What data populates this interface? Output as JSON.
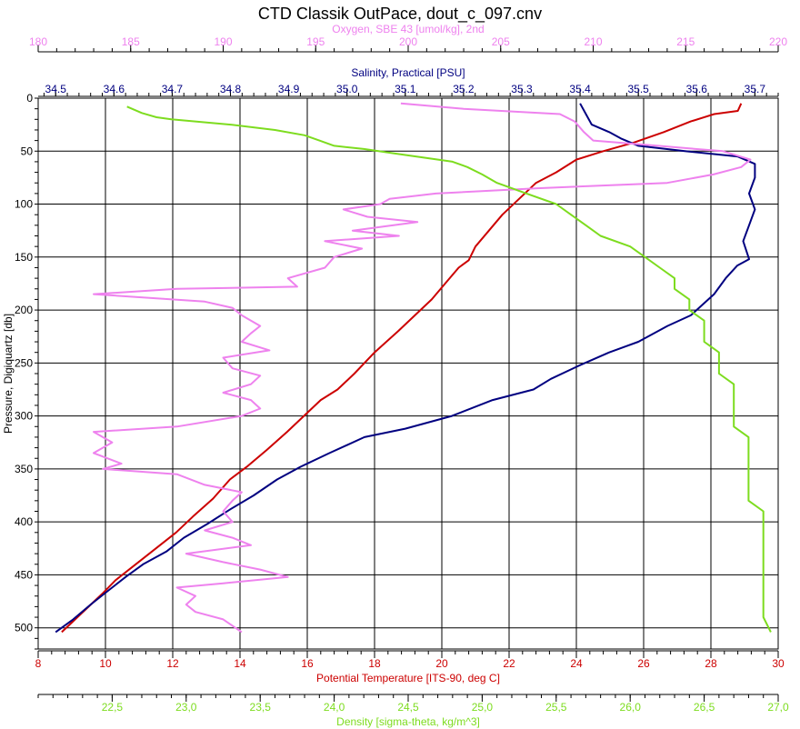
{
  "title": "CTD Classik OutPace, dout_c_097.cnv",
  "chart_data": {
    "type": "line",
    "title": "CTD Classik OutPace, dout_c_097.cnv",
    "y_axis": {
      "label": "Pressure, Digiquartz [db]",
      "range": [
        0,
        520
      ],
      "inverted": true,
      "ticks": [
        0,
        50,
        100,
        150,
        200,
        250,
        300,
        350,
        400,
        450,
        500
      ]
    },
    "x_axes": [
      {
        "id": "oxygen",
        "label": "Oxygen, SBE 43 [umol/kg], 2nd",
        "color": "#ee82ee",
        "position": "top-1",
        "range": [
          180,
          220
        ],
        "ticks": [
          180,
          185,
          190,
          195,
          200,
          205,
          210,
          215,
          220
        ],
        "tick_labels": [
          "180",
          "185",
          "190",
          "195",
          "200",
          "205",
          "210",
          "215",
          "220"
        ]
      },
      {
        "id": "salinity",
        "label": "Salinity, Practical [PSU]",
        "color": "#000080",
        "position": "top-2",
        "range": [
          34.47,
          35.74
        ],
        "ticks": [
          34.5,
          34.6,
          34.7,
          34.8,
          34.9,
          35.0,
          35.1,
          35.2,
          35.3,
          35.4,
          35.5,
          35.6,
          35.7
        ],
        "tick_labels": [
          "34.5",
          "34.6",
          "34.7",
          "34.8",
          "34.9",
          "35.0",
          "35.1",
          "35.2",
          "35.3",
          "35.4",
          "35.5",
          "35.6",
          "35.7"
        ]
      },
      {
        "id": "temperature",
        "label": "Potential Temperature [ITS-90, deg C]",
        "color": "#cc0000",
        "position": "bottom-1",
        "range": [
          8,
          30
        ],
        "ticks": [
          8,
          10,
          12,
          14,
          16,
          18,
          20,
          22,
          24,
          26,
          28,
          30
        ],
        "tick_labels": [
          "8",
          "10",
          "12",
          "14",
          "16",
          "18",
          "20",
          "22",
          "24",
          "26",
          "28",
          "30"
        ]
      },
      {
        "id": "density",
        "label": "Density [sigma-theta, kg/m^3]",
        "color": "#7ddc1f",
        "position": "bottom-2",
        "range": [
          22.0,
          27.0
        ],
        "ticks": [
          22.5,
          23.0,
          23.5,
          24.0,
          24.5,
          25.0,
          25.5,
          26.0,
          26.5,
          27.0
        ],
        "tick_labels": [
          "22,5",
          "23,0",
          "23,5",
          "24,0",
          "24,5",
          "25,0",
          "25,5",
          "26,0",
          "26,5",
          "27,0"
        ]
      }
    ],
    "grid": true,
    "series": [
      {
        "axis": "temperature",
        "color": "#cc0000",
        "points": [
          [
            28.9,
            5
          ],
          [
            28.8,
            12
          ],
          [
            28.1,
            15
          ],
          [
            27.4,
            22
          ],
          [
            26.6,
            32
          ],
          [
            25.7,
            42
          ],
          [
            24.8,
            50
          ],
          [
            24.0,
            58
          ],
          [
            23.4,
            70
          ],
          [
            22.8,
            80
          ],
          [
            22.3,
            95
          ],
          [
            21.8,
            110
          ],
          [
            21.4,
            125
          ],
          [
            21.0,
            140
          ],
          [
            20.8,
            153
          ],
          [
            20.5,
            160
          ],
          [
            20.1,
            175
          ],
          [
            19.7,
            190
          ],
          [
            19.2,
            205
          ],
          [
            18.7,
            220
          ],
          [
            18.0,
            240
          ],
          [
            17.4,
            260
          ],
          [
            16.9,
            275
          ],
          [
            16.4,
            285
          ],
          [
            15.9,
            300
          ],
          [
            15.4,
            315
          ],
          [
            14.8,
            332
          ],
          [
            14.2,
            348
          ],
          [
            13.7,
            360
          ],
          [
            13.2,
            378
          ],
          [
            12.6,
            395
          ],
          [
            12.1,
            410
          ],
          [
            11.5,
            425
          ],
          [
            10.9,
            440
          ],
          [
            10.3,
            455
          ],
          [
            9.9,
            468
          ],
          [
            9.5,
            480
          ],
          [
            9.1,
            492
          ],
          [
            8.7,
            504
          ]
        ]
      },
      {
        "axis": "salinity",
        "color": "#000080",
        "points": [
          [
            35.4,
            5
          ],
          [
            35.41,
            15
          ],
          [
            35.42,
            25
          ],
          [
            35.45,
            32
          ],
          [
            35.47,
            38
          ],
          [
            35.5,
            45
          ],
          [
            35.58,
            50
          ],
          [
            35.67,
            55
          ],
          [
            35.7,
            62
          ],
          [
            35.7,
            75
          ],
          [
            35.69,
            90
          ],
          [
            35.7,
            105
          ],
          [
            35.69,
            120
          ],
          [
            35.68,
            135
          ],
          [
            35.69,
            152
          ],
          [
            35.67,
            158
          ],
          [
            35.65,
            170
          ],
          [
            35.63,
            185
          ],
          [
            35.61,
            195
          ],
          [
            35.59,
            205
          ],
          [
            35.55,
            215
          ],
          [
            35.5,
            230
          ],
          [
            35.45,
            240
          ],
          [
            35.4,
            252
          ],
          [
            35.35,
            265
          ],
          [
            35.32,
            275
          ],
          [
            35.25,
            285
          ],
          [
            35.18,
            300
          ],
          [
            35.1,
            312
          ],
          [
            35.03,
            320
          ],
          [
            34.97,
            335
          ],
          [
            34.92,
            348
          ],
          [
            34.88,
            360
          ],
          [
            34.84,
            375
          ],
          [
            34.8,
            388
          ],
          [
            34.76,
            402
          ],
          [
            34.72,
            415
          ],
          [
            34.69,
            428
          ],
          [
            34.65,
            440
          ],
          [
            34.62,
            452
          ],
          [
            34.59,
            465
          ],
          [
            34.56,
            478
          ],
          [
            34.53,
            492
          ],
          [
            34.5,
            504
          ]
        ]
      },
      {
        "axis": "oxygen",
        "color": "#ee82ee",
        "points": [
          [
            199.6,
            5
          ],
          [
            203.0,
            10
          ],
          [
            208.2,
            15
          ],
          [
            209.0,
            22
          ],
          [
            209.5,
            32
          ],
          [
            210.0,
            40
          ],
          [
            213.5,
            45
          ],
          [
            217.0,
            50
          ],
          [
            218.5,
            58
          ],
          [
            218.0,
            65
          ],
          [
            216.5,
            72
          ],
          [
            214.0,
            80
          ],
          [
            207.0,
            85
          ],
          [
            201.5,
            90
          ],
          [
            199.0,
            95
          ],
          [
            198.5,
            100
          ],
          [
            196.5,
            105
          ],
          [
            197.8,
            112
          ],
          [
            200.5,
            117
          ],
          [
            197.0,
            125
          ],
          [
            199.5,
            130
          ],
          [
            195.5,
            135
          ],
          [
            197.5,
            142
          ],
          [
            196.0,
            150
          ],
          [
            195.5,
            160
          ],
          [
            193.5,
            170
          ],
          [
            194.0,
            178
          ],
          [
            187.5,
            180
          ],
          [
            183.0,
            185
          ],
          [
            189.0,
            192
          ],
          [
            190.5,
            198
          ],
          [
            191.0,
            205
          ],
          [
            192.0,
            215
          ],
          [
            191.5,
            222
          ],
          [
            191.0,
            230
          ],
          [
            192.5,
            238
          ],
          [
            190.0,
            245
          ],
          [
            190.5,
            255
          ],
          [
            192.0,
            262
          ],
          [
            191.5,
            270
          ],
          [
            190.0,
            278
          ],
          [
            191.5,
            285
          ],
          [
            192.0,
            293
          ],
          [
            191.0,
            300
          ],
          [
            187.5,
            310
          ],
          [
            183.0,
            315
          ],
          [
            184.0,
            325
          ],
          [
            183.0,
            335
          ],
          [
            184.5,
            345
          ],
          [
            183.5,
            350
          ],
          [
            187.5,
            355
          ],
          [
            189.0,
            365
          ],
          [
            191.0,
            372
          ],
          [
            190.5,
            380
          ],
          [
            190.0,
            390
          ],
          [
            190.5,
            400
          ],
          [
            189.0,
            408
          ],
          [
            190.5,
            415
          ],
          [
            191.5,
            422
          ],
          [
            188.0,
            430
          ],
          [
            190.0,
            438
          ],
          [
            192.0,
            445
          ],
          [
            193.5,
            452
          ],
          [
            190.0,
            458
          ],
          [
            187.5,
            462
          ],
          [
            188.5,
            470
          ],
          [
            188.0,
            478
          ],
          [
            188.5,
            485
          ],
          [
            190.0,
            492
          ],
          [
            190.5,
            498
          ],
          [
            191.0,
            504
          ]
        ]
      },
      {
        "axis": "density",
        "color": "#7ddc1f",
        "points": [
          [
            22.6,
            8
          ],
          [
            22.7,
            14
          ],
          [
            22.8,
            18
          ],
          [
            22.9,
            20
          ],
          [
            23.3,
            25
          ],
          [
            23.6,
            30
          ],
          [
            23.8,
            35
          ],
          [
            23.9,
            40
          ],
          [
            24.0,
            45
          ],
          [
            24.2,
            48
          ],
          [
            24.4,
            52
          ],
          [
            24.6,
            56
          ],
          [
            24.8,
            60
          ],
          [
            24.9,
            65
          ],
          [
            25.0,
            72
          ],
          [
            25.1,
            80
          ],
          [
            25.3,
            90
          ],
          [
            25.5,
            100
          ],
          [
            25.6,
            110
          ],
          [
            25.7,
            120
          ],
          [
            25.8,
            130
          ],
          [
            26.0,
            140
          ],
          [
            26.1,
            150
          ],
          [
            26.2,
            160
          ],
          [
            26.3,
            170
          ],
          [
            26.3,
            180
          ],
          [
            26.4,
            190
          ],
          [
            26.4,
            200
          ],
          [
            26.5,
            210
          ],
          [
            26.5,
            220
          ],
          [
            26.5,
            230
          ],
          [
            26.6,
            240
          ],
          [
            26.6,
            250
          ],
          [
            26.6,
            260
          ],
          [
            26.7,
            270
          ],
          [
            26.7,
            280
          ],
          [
            26.7,
            290
          ],
          [
            26.7,
            300
          ],
          [
            26.7,
            310
          ],
          [
            26.8,
            320
          ],
          [
            26.8,
            330
          ],
          [
            26.8,
            340
          ],
          [
            26.8,
            350
          ],
          [
            26.8,
            360
          ],
          [
            26.8,
            370
          ],
          [
            26.8,
            380
          ],
          [
            26.9,
            390
          ],
          [
            26.9,
            400
          ],
          [
            26.9,
            410
          ],
          [
            26.9,
            420
          ],
          [
            26.9,
            430
          ],
          [
            26.9,
            440
          ],
          [
            26.9,
            450
          ],
          [
            26.9,
            460
          ],
          [
            26.9,
            470
          ],
          [
            26.9,
            480
          ],
          [
            26.9,
            490
          ],
          [
            26.95,
            504
          ]
        ]
      }
    ]
  }
}
